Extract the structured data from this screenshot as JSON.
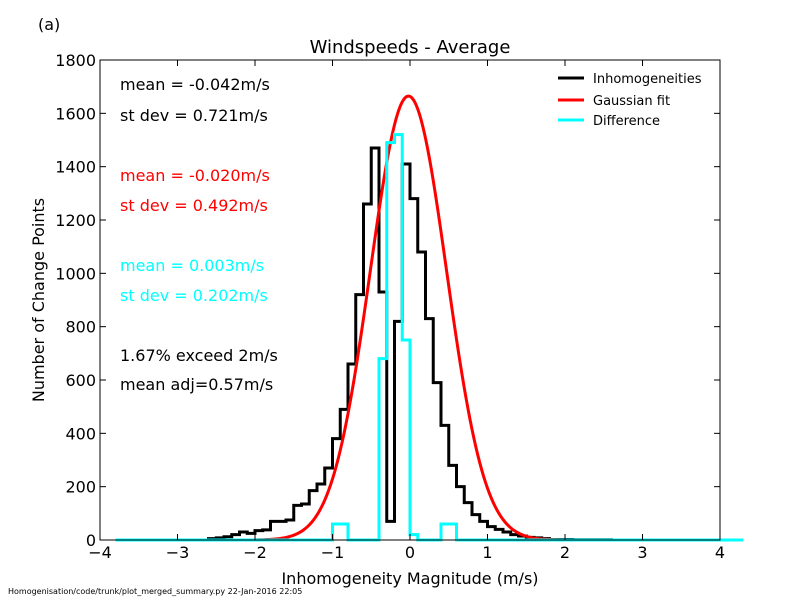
{
  "figure": {
    "panel_label": "(a)",
    "footer": "Homogenisation/code/trunk/plot_merged_summary.py   22-Jan-2016 22:05"
  },
  "chart_data": {
    "type": "line",
    "title": "Windspeeds - Average",
    "xlabel": "Inhomogeneity Magnitude (m/s)",
    "ylabel": "Number of Change Points",
    "xlim": [
      -4,
      4
    ],
    "ylim": [
      0,
      1800
    ],
    "xticks": [
      -4,
      -3,
      -2,
      -1,
      0,
      1,
      2,
      3,
      4
    ],
    "yticks": [
      0,
      200,
      400,
      600,
      800,
      1000,
      1200,
      1400,
      1600,
      1800
    ],
    "grid": false,
    "legend_position": "top-right",
    "colors": {
      "inhomogeneities": "#000000",
      "gaussian": "#ff0000",
      "difference": "#00ffff"
    },
    "legend": [
      "Inhomogeneities",
      "Gaussian fit",
      "Difference"
    ],
    "stats": [
      {
        "text": "mean = -0.042m/s",
        "color": "#000000"
      },
      {
        "text": "st dev =  0.721m/s",
        "color": "#000000"
      },
      {
        "text": "mean = -0.020m/s",
        "color": "#ff0000"
      },
      {
        "text": "st dev =  0.492m/s",
        "color": "#ff0000"
      },
      {
        "text": "mean =  0.003m/s",
        "color": "#00ffff"
      },
      {
        "text": "st dev =  0.202m/s",
        "color": "#00ffff"
      },
      {
        "text": "1.67% exceed 2m/s",
        "color": "#000000"
      },
      {
        "text": "mean adj=0.57m/s",
        "color": "#000000"
      }
    ],
    "bin_width": 0.1,
    "series": [
      {
        "name": "Inhomogeneities",
        "bin_edges_start": -3.8,
        "values": [
          0,
          0,
          0,
          0,
          0,
          0,
          0,
          0,
          0,
          0,
          0,
          0,
          5,
          8,
          12,
          20,
          30,
          25,
          35,
          38,
          70,
          70,
          75,
          130,
          135,
          185,
          210,
          270,
          380,
          490,
          660,
          920,
          1260,
          1470,
          930,
          70,
          820,
          1410,
          1280,
          1080,
          830,
          590,
          430,
          280,
          200,
          140,
          95,
          70,
          50,
          40,
          30,
          20,
          15,
          10,
          8,
          5,
          2,
          2,
          2,
          1,
          1,
          1,
          1,
          1,
          0
        ]
      },
      {
        "name": "Difference",
        "bin_edges_start": -3.8,
        "values": [
          0,
          0,
          0,
          0,
          0,
          0,
          0,
          0,
          0,
          0,
          0,
          0,
          0,
          0,
          0,
          0,
          0,
          0,
          0,
          0,
          0,
          0,
          0,
          0,
          0,
          0,
          0,
          0,
          60,
          60,
          0,
          0,
          0,
          0,
          680,
          1490,
          1520,
          750,
          20,
          0,
          0,
          0,
          60,
          60,
          0,
          0,
          0,
          0,
          0,
          0,
          0,
          0,
          0,
          0,
          0,
          0,
          0,
          0,
          0,
          0,
          0,
          0,
          0,
          0,
          0,
          0,
          0,
          0,
          0,
          0,
          0,
          0,
          0,
          0,
          0,
          0,
          0,
          0,
          0,
          0,
          0
        ]
      },
      {
        "name": "Gaussian fit",
        "mean": -0.02,
        "sigma": 0.492,
        "peak": 1665
      }
    ]
  }
}
